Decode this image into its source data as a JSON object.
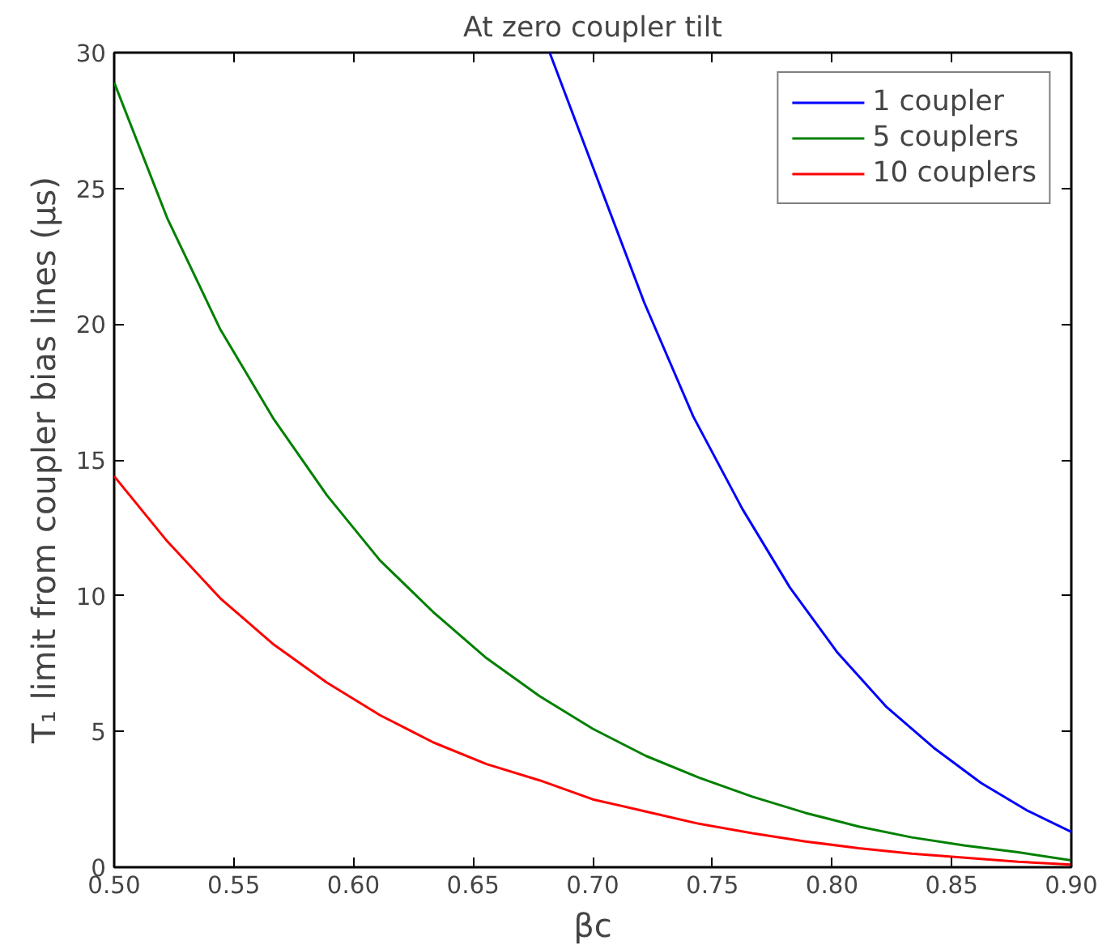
{
  "chart_data": {
    "type": "line",
    "title": "At zero coupler tilt",
    "xlabel": "βc",
    "ylabel": "T₁ limit from coupler bias lines (μs)",
    "x": [
      0.5,
      0.5222,
      0.5444,
      0.5667,
      0.5889,
      0.6111,
      0.6333,
      0.6556,
      0.6778,
      0.7,
      0.7222,
      0.7444,
      0.7667,
      0.7889,
      0.8111,
      0.8333,
      0.8556,
      0.8778,
      0.9
    ],
    "series": [
      {
        "name": "1 coupler",
        "color": "#0000ff",
        "x": [
          0.682,
          0.7,
          0.7215,
          0.742,
          0.7625,
          0.7824,
          0.8023,
          0.8228,
          0.8425,
          0.8623,
          0.8813,
          0.9
        ],
        "values": [
          30,
          25.8,
          20.8,
          16.6,
          13.2,
          10.3,
          7.9,
          5.9,
          4.4,
          3.1,
          2.1,
          1.3
        ]
      },
      {
        "name": "5 couplers",
        "color": "#008000",
        "values": [
          28.9,
          23.9,
          19.8,
          16.5,
          13.7,
          11.3,
          9.4,
          7.7,
          6.3,
          5.1,
          4.1,
          3.3,
          2.6,
          2.0,
          1.5,
          1.1,
          0.8,
          0.55,
          0.25
        ]
      },
      {
        "name": "10 couplers",
        "color": "#ff0000",
        "values": [
          14.4,
          12.0,
          9.9,
          8.2,
          6.8,
          5.6,
          4.6,
          3.8,
          3.2,
          2.5,
          2.05,
          1.6,
          1.25,
          0.95,
          0.7,
          0.5,
          0.35,
          0.2,
          0.1
        ]
      }
    ],
    "xlim": [
      0.5,
      0.9
    ],
    "ylim": [
      0,
      30
    ],
    "xticks": [
      {
        "value": 0.5,
        "label": "0.50"
      },
      {
        "value": 0.55,
        "label": "0.55"
      },
      {
        "value": 0.6,
        "label": "0.60"
      },
      {
        "value": 0.65,
        "label": "0.65"
      },
      {
        "value": 0.7,
        "label": "0.70"
      },
      {
        "value": 0.75,
        "label": "0.75"
      },
      {
        "value": 0.8,
        "label": "0.80"
      },
      {
        "value": 0.85,
        "label": "0.85"
      },
      {
        "value": 0.9,
        "label": "0.90"
      }
    ],
    "yticks": [
      0,
      5,
      10,
      15,
      20,
      25,
      30
    ],
    "legend": "top right",
    "grid": false
  }
}
